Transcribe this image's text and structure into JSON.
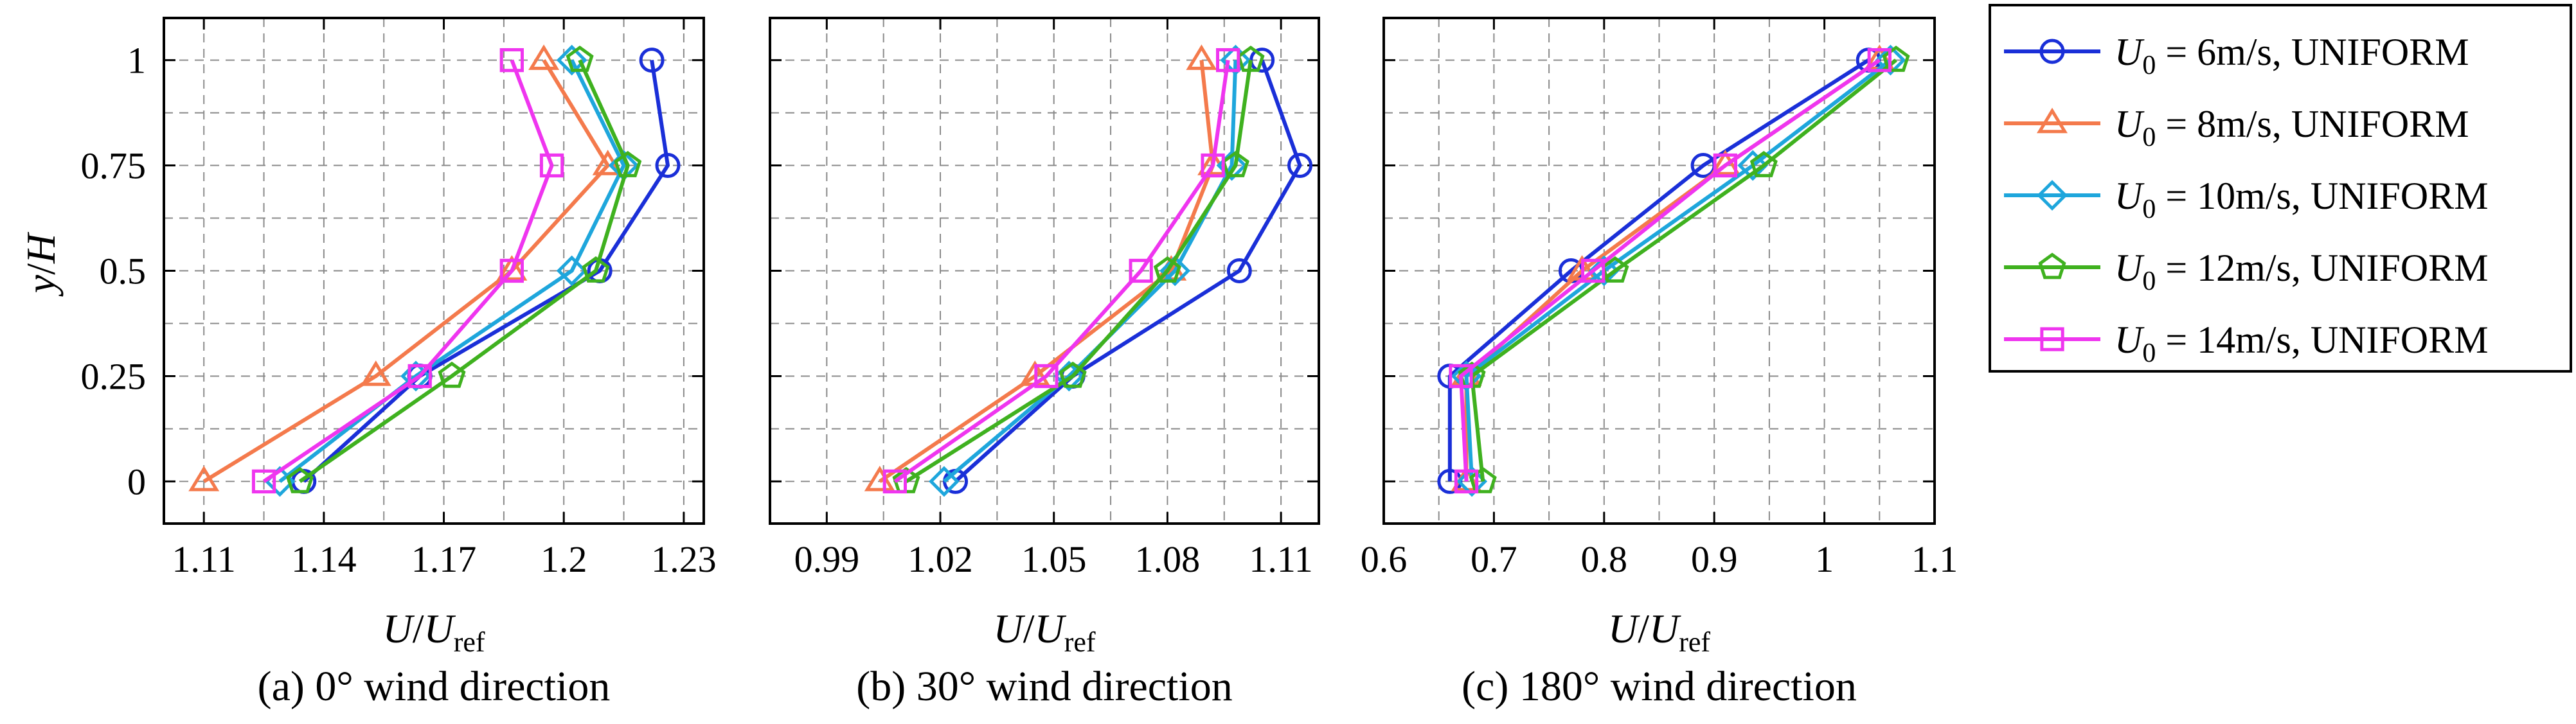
{
  "chart_data": [
    {
      "type": "line",
      "panel": "a",
      "caption": "(a) 0° wind direction",
      "xlabel": "U/U_ref",
      "ylabel": "y/H",
      "xlim": [
        1.1,
        1.235
      ],
      "ylim": [
        -0.1,
        1.1
      ],
      "xticks": [
        1.11,
        1.14,
        1.17,
        1.2,
        1.23
      ],
      "xtick_labels": [
        "1.11",
        "1.14",
        "1.17",
        "1.2",
        "1.23"
      ],
      "yticks": [
        0,
        0.25,
        0.5,
        0.75,
        1
      ],
      "ytick_labels": [
        "0",
        "0.25",
        "0.5",
        "0.75",
        "1"
      ],
      "y": [
        0,
        0.25,
        0.5,
        0.75,
        1
      ],
      "series": [
        {
          "name": "U0 = 6m/s, UNIFORM",
          "values": [
            1.135,
            1.164,
            1.209,
            1.226,
            1.222
          ]
        },
        {
          "name": "U0 = 8m/s, UNIFORM",
          "values": [
            1.11,
            1.153,
            1.187,
            1.211,
            1.195
          ]
        },
        {
          "name": "U0 = 10m/s, UNIFORM",
          "values": [
            1.129,
            1.163,
            1.202,
            1.215,
            1.202
          ]
        },
        {
          "name": "U0 = 12m/s, UNIFORM",
          "values": [
            1.134,
            1.172,
            1.208,
            1.216,
            1.204
          ]
        },
        {
          "name": "U0 = 14m/s, UNIFORM",
          "values": [
            1.125,
            1.164,
            1.187,
            1.197,
            1.187
          ]
        }
      ]
    },
    {
      "type": "line",
      "panel": "b",
      "caption": "(b) 30° wind direction",
      "xlabel": "U/U_ref",
      "ylabel": "",
      "xlim": [
        0.975,
        1.12
      ],
      "ylim": [
        -0.1,
        1.1
      ],
      "xticks": [
        0.99,
        1.02,
        1.05,
        1.08,
        1.11
      ],
      "xtick_labels": [
        "0.99",
        "1.02",
        "1.05",
        "1.08",
        "1.11"
      ],
      "yticks": [
        0,
        0.25,
        0.5,
        0.75,
        1
      ],
      "ytick_labels": [],
      "y": [
        0,
        0.25,
        0.5,
        0.75,
        1
      ],
      "series": [
        {
          "name": "U0 = 6m/s, UNIFORM",
          "values": [
            1.024,
            1.055,
            1.099,
            1.115,
            1.105
          ]
        },
        {
          "name": "U0 = 8m/s, UNIFORM",
          "values": [
            1.004,
            1.045,
            1.081,
            1.092,
            1.089
          ]
        },
        {
          "name": "U0 = 10m/s, UNIFORM",
          "values": [
            1.021,
            1.054,
            1.082,
            1.097,
            1.098
          ]
        },
        {
          "name": "U0 = 12m/s, UNIFORM",
          "values": [
            1.011,
            1.055,
            1.08,
            1.098,
            1.102
          ]
        },
        {
          "name": "U0 = 14m/s, UNIFORM",
          "values": [
            1.008,
            1.048,
            1.073,
            1.092,
            1.096
          ]
        }
      ]
    },
    {
      "type": "line",
      "panel": "c",
      "caption": "(c) 180° wind direction",
      "xlabel": "U/U_ref",
      "ylabel": "",
      "xlim": [
        0.6,
        1.1
      ],
      "ylim": [
        -0.1,
        1.1
      ],
      "xticks": [
        0.6,
        0.7,
        0.8,
        0.9,
        1.0,
        1.1
      ],
      "xtick_labels": [
        "0.6",
        "0.7",
        "0.8",
        "0.9",
        "1",
        "1.1"
      ],
      "yticks": [
        0,
        0.25,
        0.5,
        0.75,
        1
      ],
      "ytick_labels": [],
      "y": [
        0,
        0.25,
        0.5,
        0.75,
        1
      ],
      "series": [
        {
          "name": "U0 = 6m/s, UNIFORM",
          "values": [
            0.66,
            0.66,
            0.77,
            0.89,
            1.04
          ]
        },
        {
          "name": "U0 = 8m/s, UNIFORM",
          "values": [
            0.675,
            0.675,
            0.78,
            0.91,
            1.05
          ]
        },
        {
          "name": "U0 = 10m/s, UNIFORM",
          "values": [
            0.68,
            0.675,
            0.8,
            0.935,
            1.06
          ]
        },
        {
          "name": "U0 = 12m/s, UNIFORM",
          "values": [
            0.69,
            0.68,
            0.81,
            0.945,
            1.065
          ]
        },
        {
          "name": "U0 = 14m/s, UNIFORM",
          "values": [
            0.675,
            0.67,
            0.79,
            0.91,
            1.05
          ]
        }
      ]
    }
  ],
  "legend": {
    "position": "right",
    "items": [
      {
        "symbol": "U",
        "subscript": "0",
        "rest": " = 6m/s, UNIFORM",
        "color": "#1a2fd8",
        "marker": "circle"
      },
      {
        "symbol": "U",
        "subscript": "0",
        "rest": " = 8m/s, UNIFORM",
        "color": "#f47a4c",
        "marker": "triangle"
      },
      {
        "symbol": "U",
        "subscript": "0",
        "rest": " = 10m/s, UNIFORM",
        "color": "#1ea6dc",
        "marker": "diamond"
      },
      {
        "symbol": "U",
        "subscript": "0",
        "rest": " = 12m/s, UNIFORM",
        "color": "#3fb11f",
        "marker": "pentagon"
      },
      {
        "symbol": "U",
        "subscript": "0",
        "rest": " = 14m/s, UNIFORM",
        "color": "#ef35ef",
        "marker": "square"
      }
    ]
  },
  "axis_text": {
    "ylabel_main": "y",
    "ylabel_slash": "/",
    "ylabel_denominator": "H",
    "xlabel_main": "U",
    "xlabel_slash": "/",
    "xlabel_denominator": "U",
    "xlabel_sub": "ref"
  }
}
